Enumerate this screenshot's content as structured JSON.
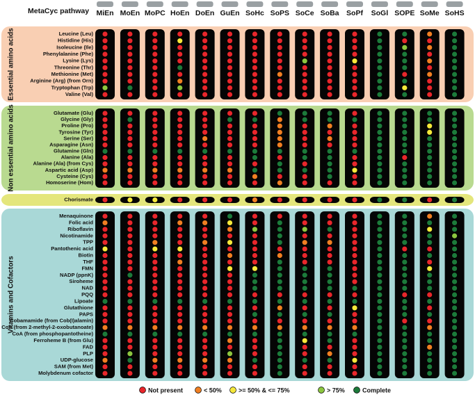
{
  "chart_data": {
    "type": "dotmatrix",
    "title": "MetaCyc pathway",
    "columns": [
      "MiEn",
      "MoEn",
      "MoPC",
      "HoEn",
      "DoEn",
      "GuEn",
      "SoHc",
      "SoPS",
      "SoCe",
      "SoBa",
      "SoPf",
      "SoGl",
      "SOPE",
      "SoMe",
      "SoHS"
    ],
    "legend": [
      {
        "label": "Not present",
        "color": "#e8262b"
      },
      {
        "label": "< 50%",
        "color": "#f07f22"
      },
      {
        "label": ">= 50% & <= 75%",
        "color": "#f5e83a"
      },
      {
        "label": "> 75%",
        "color": "#8cc63f"
      },
      {
        "label": "Complete",
        "color": "#1c7a3a"
      }
    ],
    "groups": [
      {
        "name": "Essential amino acids",
        "color": "#f9cfb3",
        "rows": [
          "Leucine (Leu)",
          "Histidine (His)",
          "Isoleucine (Ile)",
          "Phenylalanine (Phe)",
          "Lysine (Lys)",
          "Threonine (Thr)",
          "Methionine (Met)",
          "Arginine (Arg) (from Orn)",
          "Tryptophan (Trp)",
          "Valine (Val)"
        ],
        "values": [
          [
            0,
            0,
            0,
            0,
            0,
            0,
            0,
            0,
            0,
            0,
            0,
            4,
            4,
            1,
            4
          ],
          [
            0,
            0,
            0,
            2,
            0,
            0,
            0,
            0,
            0,
            0,
            0,
            4,
            0,
            0,
            4
          ],
          [
            0,
            0,
            0,
            0,
            0,
            0,
            0,
            0,
            0,
            0,
            0,
            4,
            3,
            1,
            4
          ],
          [
            0,
            0,
            0,
            0,
            0,
            0,
            0,
            0,
            0,
            0,
            0,
            4,
            4,
            0,
            4
          ],
          [
            0,
            0,
            0,
            0,
            0,
            0,
            0,
            0,
            3,
            0,
            2,
            4,
            4,
            1,
            4
          ],
          [
            0,
            0,
            0,
            4,
            0,
            0,
            0,
            0,
            0,
            0,
            0,
            4,
            4,
            0,
            4
          ],
          [
            0,
            0,
            0,
            0,
            0,
            0,
            0,
            1,
            0,
            0,
            0,
            4,
            0,
            1,
            4
          ],
          [
            0,
            0,
            0,
            1,
            0,
            0,
            0,
            0,
            0,
            0,
            0,
            4,
            4,
            0,
            4
          ],
          [
            3,
            4,
            0,
            3,
            0,
            0,
            0,
            0,
            0,
            0,
            0,
            4,
            2,
            0,
            4
          ],
          [
            0,
            0,
            0,
            0,
            0,
            0,
            0,
            0,
            0,
            0,
            0,
            4,
            4,
            0,
            4
          ]
        ]
      },
      {
        "name": "Non essential amino acids",
        "color": "#b9da90",
        "rows": [
          "Glutamate (Glu)",
          "Glycine (Gly)",
          "Proline (Pro)",
          "Tyrosine (Tyr)",
          "Serine (Ser)",
          "Asparagine (Asn)",
          "Glutamine (Gln)",
          "Alanine (Ala)",
          "Alanine (Ala) (from Cys)",
          "Aspartic acid (Asp)",
          "Cysteine (Cys)",
          "Homoserine (Hom)"
        ],
        "values": [
          [
            0,
            0,
            0,
            0,
            0,
            0,
            0,
            4,
            4,
            4,
            0,
            4,
            4,
            4,
            4
          ],
          [
            0,
            4,
            0,
            0,
            0,
            4,
            4,
            1,
            4,
            4,
            4,
            4,
            4,
            4,
            4
          ],
          [
            0,
            0,
            0,
            0,
            0,
            0,
            0,
            1,
            0,
            1,
            0,
            4,
            4,
            2,
            4
          ],
          [
            0,
            0,
            0,
            0,
            0,
            0,
            0,
            1,
            0,
            0,
            0,
            4,
            4,
            2,
            4
          ],
          [
            0,
            0,
            0,
            0,
            1,
            0,
            0,
            1,
            0,
            1,
            0,
            4,
            4,
            4,
            4
          ],
          [
            0,
            0,
            0,
            0,
            0,
            0,
            0,
            1,
            0,
            0,
            0,
            4,
            4,
            4,
            4
          ],
          [
            4,
            4,
            4,
            4,
            4,
            4,
            4,
            4,
            4,
            4,
            4,
            4,
            4,
            4,
            4
          ],
          [
            0,
            0,
            0,
            0,
            0,
            0,
            4,
            0,
            4,
            4,
            0,
            4,
            0,
            4,
            4
          ],
          [
            0,
            0,
            0,
            0,
            0,
            0,
            0,
            4,
            0,
            4,
            0,
            4,
            4,
            4,
            4
          ],
          [
            1,
            1,
            1,
            1,
            1,
            1,
            4,
            4,
            4,
            4,
            2,
            4,
            4,
            4,
            4
          ],
          [
            0,
            0,
            0,
            0,
            0,
            0,
            1,
            0,
            0,
            4,
            0,
            4,
            4,
            4,
            4
          ],
          [
            0,
            0,
            0,
            0,
            0,
            0,
            0,
            1,
            0,
            0,
            0,
            4,
            4,
            4,
            4
          ]
        ]
      },
      {
        "color": "#e4e67c",
        "rows": [
          "Chorismate"
        ],
        "values": [
          [
            0,
            2,
            2,
            0,
            0,
            0,
            1,
            0,
            0,
            0,
            0,
            4,
            4,
            0,
            4
          ]
        ]
      },
      {
        "name": "Vitamins and Cofactors",
        "color": "#a9d8d7",
        "rows": [
          "Menaquinone",
          "Folic acid",
          "Riboflavin",
          "Nicotinamide",
          "TPP",
          "Pantothenic acid",
          "Biotin",
          "THF",
          "FMN",
          "NADP (ppnK)",
          "Siroheme",
          "NAD",
          "PQQ",
          "Lipoate",
          "Glutathione",
          "PAPS",
          "Cobamamide (from Cob(I)alamin)",
          "CoA  (from 2-methyl-2-oxobutanoate)",
          "CoA (from phosphopantotheine)",
          "Ferroheme B (from Glu)",
          "FAD",
          "PLP",
          "UDP-glucose",
          "SAM (from Met)",
          "Molybdenum cofactor"
        ],
        "values": [
          [
            0,
            0,
            0,
            0,
            0,
            4,
            0,
            0,
            0,
            0,
            0,
            4,
            4,
            1,
            4
          ],
          [
            1,
            0,
            0,
            1,
            1,
            2,
            0,
            4,
            0,
            0,
            0,
            4,
            4,
            4,
            4
          ],
          [
            0,
            0,
            0,
            0,
            0,
            1,
            3,
            4,
            3,
            4,
            0,
            4,
            4,
            2,
            4
          ],
          [
            0,
            0,
            0,
            0,
            0,
            0,
            0,
            4,
            0,
            0,
            0,
            4,
            4,
            4,
            3
          ],
          [
            0,
            0,
            1,
            0,
            1,
            2,
            0,
            4,
            1,
            1,
            0,
            4,
            4,
            4,
            4
          ],
          [
            2,
            0,
            2,
            2,
            0,
            0,
            0,
            0,
            0,
            0,
            0,
            4,
            0,
            0,
            4
          ],
          [
            0,
            0,
            0,
            0,
            0,
            1,
            0,
            1,
            0,
            0,
            0,
            4,
            4,
            4,
            4
          ],
          [
            0,
            0,
            0,
            1,
            0,
            0,
            0,
            4,
            0,
            0,
            0,
            4,
            4,
            0,
            4
          ],
          [
            0,
            0,
            0,
            0,
            0,
            2,
            2,
            4,
            4,
            4,
            0,
            4,
            4,
            2,
            4
          ],
          [
            0,
            4,
            0,
            0,
            0,
            0,
            4,
            4,
            4,
            4,
            0,
            4,
            4,
            4,
            4
          ],
          [
            0,
            0,
            0,
            0,
            0,
            0,
            4,
            4,
            4,
            4,
            0,
            4,
            4,
            4,
            4
          ],
          [
            0,
            0,
            0,
            0,
            0,
            0,
            4,
            4,
            4,
            4,
            4,
            4,
            4,
            4,
            4
          ],
          [
            0,
            0,
            0,
            0,
            0,
            0,
            0,
            0,
            0,
            0,
            0,
            4,
            0,
            0,
            4
          ],
          [
            4,
            4,
            4,
            4,
            4,
            4,
            4,
            4,
            4,
            4,
            4,
            4,
            4,
            4,
            4
          ],
          [
            0,
            0,
            0,
            0,
            0,
            0,
            0,
            1,
            0,
            0,
            2,
            4,
            4,
            0,
            4
          ],
          [
            0,
            0,
            0,
            0,
            0,
            0,
            4,
            4,
            4,
            4,
            0,
            4,
            4,
            4,
            4
          ],
          [
            0,
            0,
            0,
            0,
            0,
            0,
            0,
            0,
            0,
            0,
            0,
            4,
            0,
            0,
            4
          ],
          [
            1,
            1,
            1,
            1,
            1,
            1,
            1,
            1,
            1,
            1,
            1,
            4,
            4,
            1,
            4
          ],
          [
            4,
            4,
            4,
            4,
            4,
            4,
            4,
            4,
            4,
            4,
            4,
            4,
            4,
            4,
            4
          ],
          [
            0,
            0,
            0,
            0,
            0,
            1,
            0,
            4,
            2,
            4,
            0,
            4,
            4,
            4,
            4
          ],
          [
            0,
            0,
            0,
            0,
            0,
            0,
            0,
            4,
            0,
            0,
            0,
            4,
            4,
            1,
            4
          ],
          [
            0,
            3,
            0,
            0,
            0,
            3,
            0,
            4,
            0,
            1,
            0,
            4,
            4,
            4,
            4
          ],
          [
            1,
            4,
            1,
            1,
            1,
            1,
            4,
            4,
            4,
            4,
            2,
            4,
            4,
            4,
            4
          ],
          [
            0,
            0,
            0,
            0,
            0,
            0,
            0,
            4,
            0,
            0,
            0,
            4,
            4,
            4,
            4
          ],
          [
            0,
            0,
            0,
            0,
            0,
            0,
            0,
            4,
            0,
            0,
            0,
            4,
            4,
            4,
            4
          ]
        ]
      }
    ]
  }
}
